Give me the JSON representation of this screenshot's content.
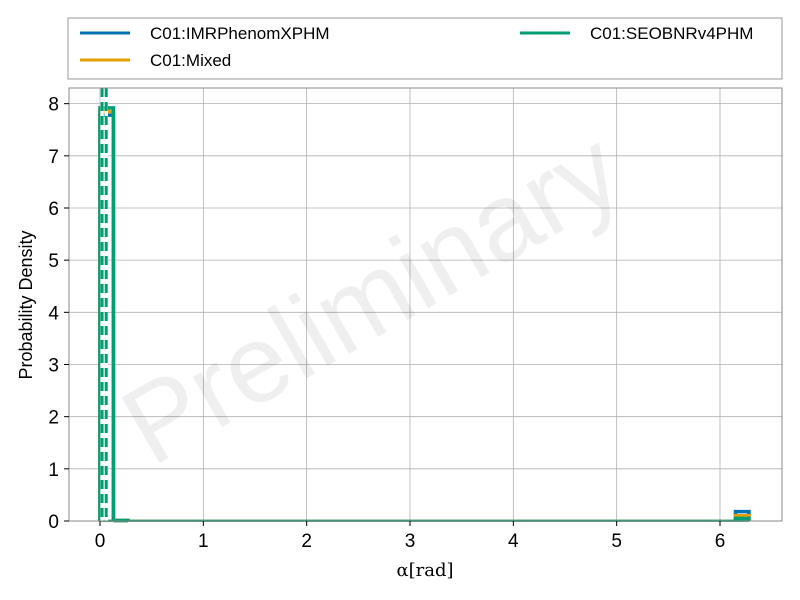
{
  "chart_data": {
    "type": "histogram",
    "xlabel": "α[rad]",
    "ylabel": "Probability Density",
    "xlim": [
      -0.3,
      6.6
    ],
    "ylim": [
      0,
      8.3
    ],
    "xticks": [
      "0",
      "1",
      "2",
      "3",
      "4",
      "5",
      "6"
    ],
    "yticks": [
      "0",
      "1",
      "2",
      "3",
      "4",
      "5",
      "6",
      "7",
      "8"
    ],
    "grid": true,
    "watermark": "Preliminary",
    "legend": {
      "placement": "top-outside",
      "columns": 2
    },
    "reference_lines": [
      {
        "x": 0.02,
        "style": "dashed",
        "color": "#009E73"
      },
      {
        "x": 0.06,
        "style": "dashed",
        "color": "#009E73"
      }
    ],
    "series": [
      {
        "name": "C01:IMRPhenomXPHM",
        "color": "#0072B2",
        "bins": [
          [
            0.0,
            0.13,
            7.78
          ],
          [
            0.13,
            0.27,
            0.01
          ],
          [
            6.15,
            6.28,
            0.18
          ]
        ]
      },
      {
        "name": "C01:Mixed",
        "color": "#E69F00",
        "bins": [
          [
            0.0,
            0.13,
            7.85
          ],
          [
            0.13,
            0.27,
            0.01
          ],
          [
            6.15,
            6.28,
            0.1
          ]
        ]
      },
      {
        "name": "C01:SEOBNRv4PHM",
        "color": "#009E73",
        "bins": [
          [
            0.0,
            0.13,
            7.92
          ],
          [
            0.13,
            0.27,
            0.01
          ],
          [
            6.15,
            6.28,
            0.05
          ]
        ]
      }
    ]
  }
}
